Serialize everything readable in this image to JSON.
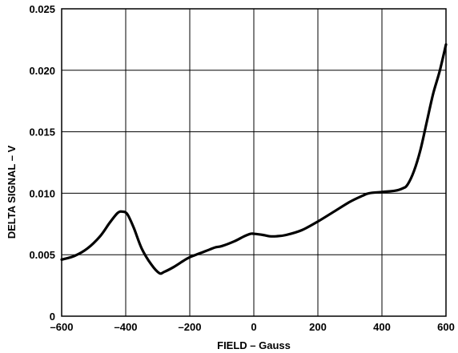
{
  "chart_data": {
    "type": "line",
    "title": "",
    "xlabel": "FIELD – Gauss",
    "ylabel": "DELTA SIGNAL – V",
    "xlim": [
      -600,
      600
    ],
    "ylim": [
      0,
      0.025
    ],
    "grid": true,
    "x_ticks": [
      -600,
      -400,
      -200,
      0,
      200,
      400,
      600
    ],
    "x_tick_labels": [
      "–600",
      "–400",
      "–200",
      "0",
      "200",
      "400",
      "600"
    ],
    "y_ticks": [
      0,
      0.005,
      0.01,
      0.015,
      0.02,
      0.025
    ],
    "y_tick_labels": [
      "0",
      "0.005",
      "0.010",
      "0.015",
      "0.020",
      "0.025"
    ],
    "series": [
      {
        "color": "#000000",
        "x": [
          -600,
          -560,
          -520,
          -480,
          -450,
          -425,
          -410,
          -395,
          -375,
          -350,
          -320,
          -295,
          -280,
          -250,
          -220,
          -200,
          -170,
          -140,
          -120,
          -100,
          -60,
          -30,
          -10,
          0,
          30,
          50,
          70,
          100,
          150,
          200,
          250,
          300,
          340,
          360,
          400,
          440,
          465,
          480,
          500,
          520,
          540,
          560,
          580,
          600
        ],
        "y": [
          0.0046,
          0.0049,
          0.0055,
          0.0065,
          0.0076,
          0.0084,
          0.0085,
          0.0083,
          0.0072,
          0.0055,
          0.0042,
          0.0035,
          0.0036,
          0.004,
          0.0045,
          0.0048,
          0.0051,
          0.0054,
          0.0056,
          0.0057,
          0.0061,
          0.0065,
          0.0067,
          0.0067,
          0.0066,
          0.0065,
          0.0065,
          0.0066,
          0.007,
          0.0077,
          0.0085,
          0.0093,
          0.0098,
          0.01,
          0.0101,
          0.0102,
          0.0104,
          0.0107,
          0.0118,
          0.0135,
          0.0158,
          0.0181,
          0.0199,
          0.0221
        ]
      }
    ]
  }
}
